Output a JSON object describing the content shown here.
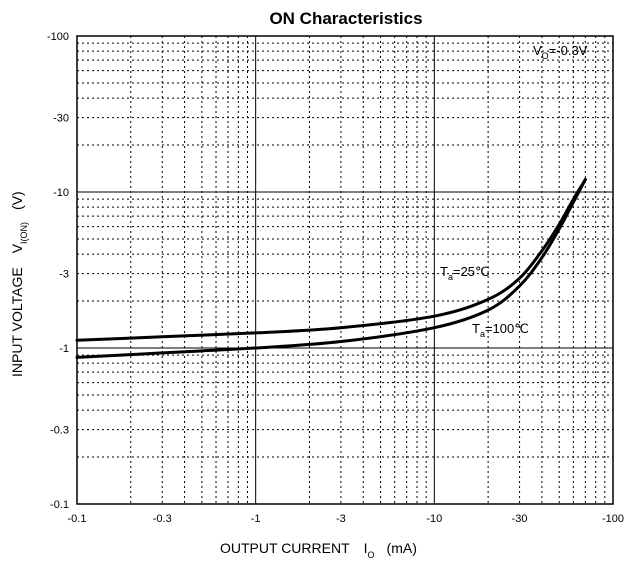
{
  "chart_data": {
    "type": "line",
    "title": "ON Characteristics",
    "xlabel": {
      "main": "OUTPUT CURRENT",
      "symbol": "I",
      "subscript": "O",
      "unit": "(mA)"
    },
    "ylabel": {
      "main": "INPUT VOLTAGE",
      "symbol": "V",
      "subscript": "I(ON)",
      "unit": "(V)"
    },
    "x_scale": "log",
    "y_scale": "log",
    "xlim": [
      -0.1,
      -100
    ],
    "ylim": [
      -0.1,
      -100
    ],
    "x_ticks": [
      "-0.1",
      "-0.3",
      "-1",
      "-3",
      "-10",
      "-30",
      "-100"
    ],
    "y_ticks": [
      "-100",
      "-30",
      "-10",
      "-3",
      "-1",
      "-0.3",
      "-0.1"
    ],
    "grid": true,
    "condition": {
      "symbol": "V",
      "subscript": "O",
      "value": "=-0.3V"
    },
    "series": [
      {
        "name": "Ta=25℃",
        "label": {
          "symbol": "T",
          "subscript": "a",
          "value": "=25℃"
        },
        "x": [
          -0.1,
          -0.3,
          -1,
          -3,
          -10,
          -20,
          -30,
          -40,
          -50,
          -60,
          -70
        ],
        "y": [
          -1.12,
          -1.18,
          -1.25,
          -1.35,
          -1.6,
          -2.05,
          -2.8,
          -4.2,
          -6.2,
          -9.0,
          -12.0
        ]
      },
      {
        "name": "Ta=100℃",
        "label": {
          "symbol": "T",
          "subscript": "a",
          "value": "=100℃"
        },
        "x": [
          -0.1,
          -0.3,
          -1,
          -3,
          -10,
          -20,
          -30,
          -40,
          -50,
          -60,
          -70
        ],
        "y": [
          -0.87,
          -0.93,
          -1.0,
          -1.1,
          -1.35,
          -1.75,
          -2.5,
          -3.8,
          -5.8,
          -8.6,
          -12.0
        ]
      }
    ]
  }
}
